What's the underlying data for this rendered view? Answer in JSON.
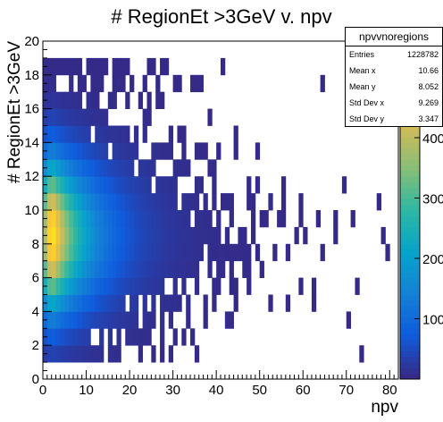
{
  "chart_data": {
    "type": "heatmap",
    "title": "# RegionEt >3GeV v. npv",
    "xlabel": "npv",
    "ylabel": "# RegionEt >3GeV",
    "xlim": [
      0,
      82
    ],
    "ylim": [
      0,
      20
    ],
    "x_ticks": [
      "0",
      "10",
      "20",
      "30",
      "40",
      "50",
      "60",
      "70",
      "80"
    ],
    "y_ticks": [
      "0",
      "2",
      "4",
      "6",
      "8",
      "10",
      "12",
      "14",
      "16",
      "18",
      "20"
    ],
    "x_bin_width": 1,
    "y_bin_width": 1,
    "y_bins": [
      1,
      19
    ],
    "colorbar_ticks": [
      "100",
      "200",
      "300",
      "400",
      "500"
    ],
    "colorbar_max": 560,
    "description_peak": {
      "x": 2,
      "y": 8
    },
    "stats": {
      "title": "npvvnoregions",
      "rows": [
        {
          "label": "Entries",
          "value": "1228782"
        },
        {
          "label": "Mean x",
          "value": "10.66"
        },
        {
          "label": "Mean y",
          "value": "8.052"
        },
        {
          "label": "Std Dev x",
          "value": "9.269"
        },
        {
          "label": "Std Dev y",
          "value": "3.347"
        }
      ]
    }
  },
  "colors": {
    "palette": [
      "#352a87",
      "#0f5cdd",
      "#1481d6",
      "#06a4ca",
      "#2eb7a4",
      "#87bf77",
      "#d1bb59",
      "#fec832",
      "#f9fb0e"
    ],
    "frame": "#000000"
  }
}
